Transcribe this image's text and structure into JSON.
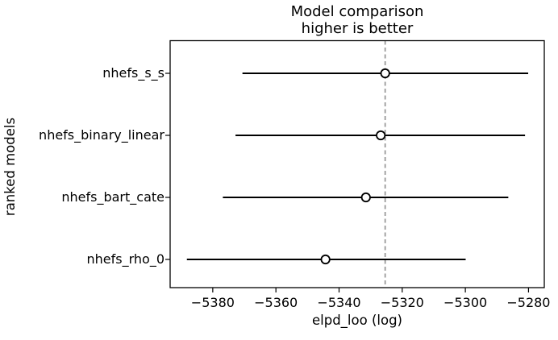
{
  "chart_data": {
    "type": "scatter",
    "subtype": "horizontal-errorbar-model-comparison",
    "title": "Model comparison",
    "subtitle": "higher is better",
    "xlabel": "elpd_loo (log)",
    "ylabel": "ranked models",
    "grid": false,
    "legend_position": "none",
    "categories": [
      "nhefs_s_s",
      "nhefs_binary_linear",
      "nhefs_bart_cate",
      "nhefs_rho_0"
    ],
    "series": [
      {
        "name": "elpd_loo",
        "marker": "open-circle",
        "values": [
          -5325.4,
          -5326.8,
          -5331.5,
          -5344.3
        ],
        "error_low": [
          -5370.6,
          -5372.8,
          -5376.8,
          -5388.2
        ],
        "error_high": [
          -5280.1,
          -5281.1,
          -5286.4,
          -5299.9
        ]
      }
    ],
    "reference_line": {
      "x": -5325.4,
      "style": "dashed",
      "orientation": "vertical"
    },
    "x_ticks": {
      "values": [
        -5380,
        -5360,
        -5340,
        -5320,
        -5300,
        -5280
      ],
      "labels": [
        "−5380",
        "−5360",
        "−5340",
        "−5320",
        "−5300",
        "−5280"
      ]
    },
    "xlim": [
      -5393.5,
      -5275.0
    ],
    "colors": {
      "errorbar": "#000000",
      "marker_edge": "#000000",
      "marker_fill": "#ffffff",
      "reference_line": "#9a9a9a",
      "axes": "#000000",
      "text": "#000000",
      "background": "#ffffff"
    }
  }
}
